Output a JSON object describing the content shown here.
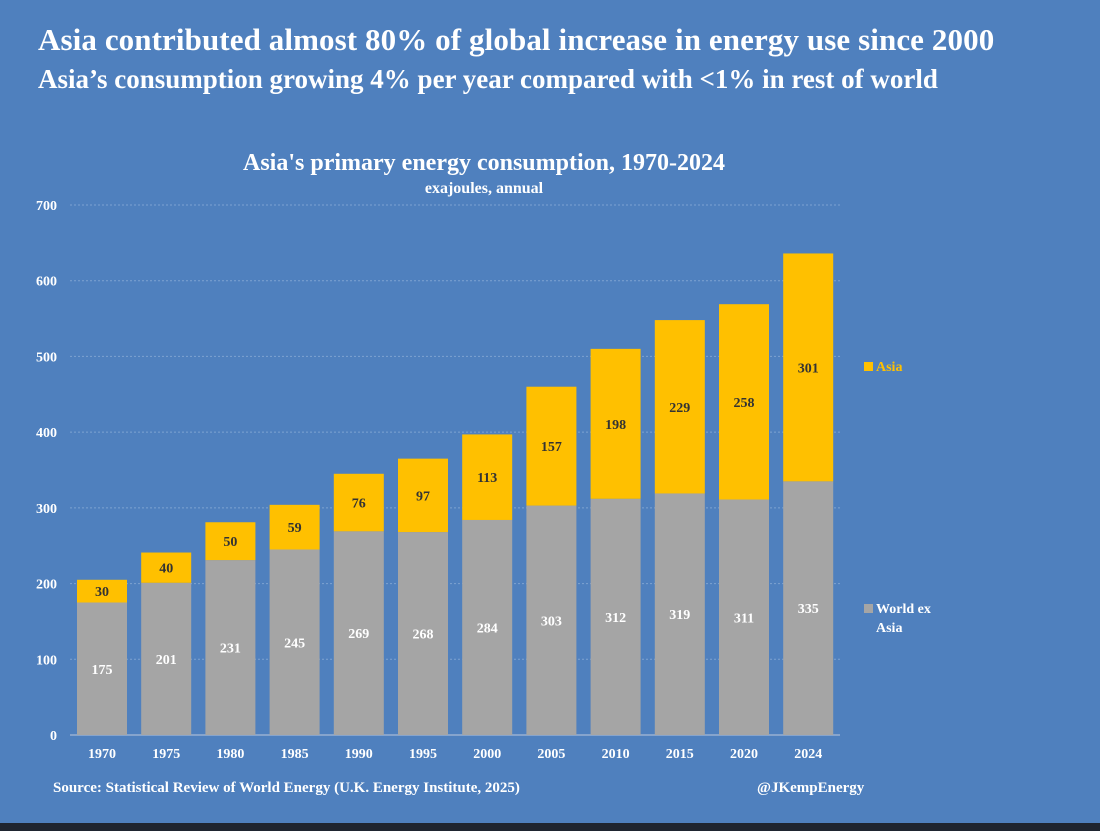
{
  "header": {
    "headline": "Asia contributed almost 80% of global increase in energy use since 2000",
    "subheadline": "Asia’s consumption growing 4% per year compared with <1% in rest of world"
  },
  "colors": {
    "background": "#4f80be",
    "asia": "#ffc000",
    "world_ex_asia": "#a5a5a5",
    "gridline": "#7ea2d1",
    "axis_text": "#ffffff",
    "asia_label": "#333333",
    "world_label": "#ffffff"
  },
  "chart_data": {
    "type": "bar",
    "stacked": true,
    "title": "Asia's primary energy consumption, 1970-2024",
    "subtitle": "exajoules, annual",
    "xlabel": "",
    "ylabel": "",
    "ylim": [
      0,
      700
    ],
    "yticks": [
      0,
      100,
      200,
      300,
      400,
      500,
      600,
      700
    ],
    "grid": true,
    "categories": [
      "1970",
      "1975",
      "1980",
      "1985",
      "1990",
      "1995",
      "2000",
      "2005",
      "2010",
      "2015",
      "2020",
      "2024"
    ],
    "series": [
      {
        "name": "World ex Asia",
        "legend_lines": [
          "World ex",
          "Asia"
        ],
        "values": [
          175,
          201,
          231,
          245,
          269,
          268,
          284,
          303,
          312,
          319,
          311,
          335
        ]
      },
      {
        "name": "Asia",
        "legend_lines": [
          "Asia"
        ],
        "values": [
          30,
          40,
          50,
          59,
          76,
          97,
          113,
          157,
          198,
          229,
          258,
          301
        ]
      }
    ],
    "legend_position": "right"
  },
  "footer": {
    "source": "Source: Statistical Review of World Energy (U.K. Energy Institute, 2025)",
    "credit": "@JKempEnergy"
  }
}
